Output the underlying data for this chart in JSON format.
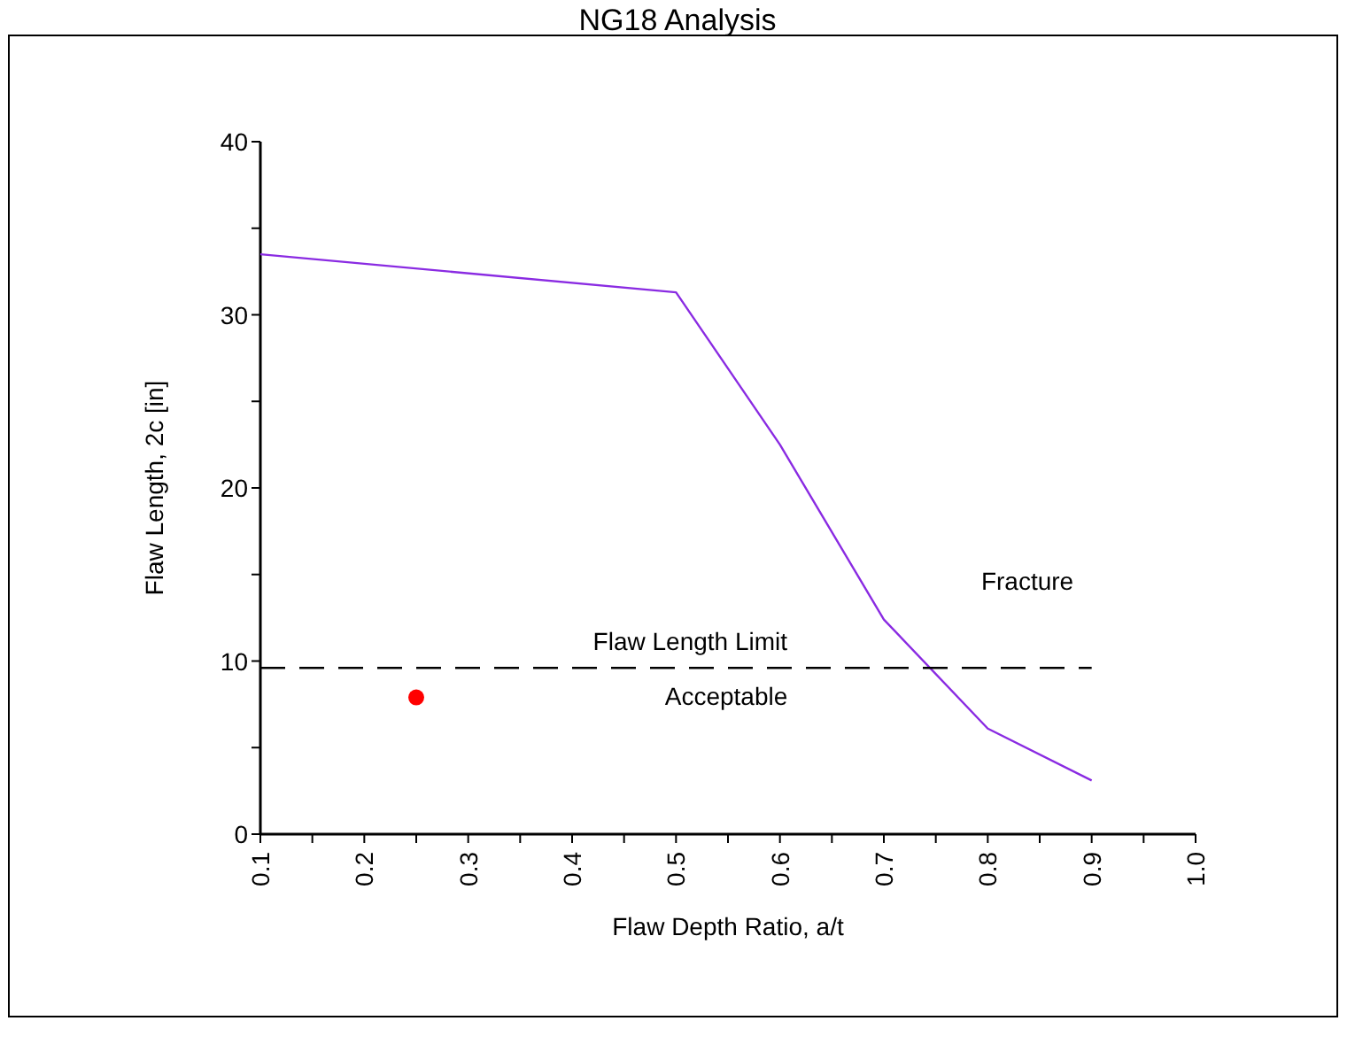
{
  "chart_data": {
    "type": "line",
    "title": "NG18 Analysis",
    "xlabel": "Flaw Depth Ratio, a/t",
    "ylabel": "Flaw Length, 2c [in]",
    "xlim": [
      0.1,
      1.0
    ],
    "ylim": [
      0,
      40
    ],
    "xticks": [
      {
        "value": 0.1,
        "label": "0.1"
      },
      {
        "value": 0.15,
        "label": null
      },
      {
        "value": 0.2,
        "label": "0.2"
      },
      {
        "value": 0.25,
        "label": null
      },
      {
        "value": 0.3,
        "label": "0.3"
      },
      {
        "value": 0.35,
        "label": null
      },
      {
        "value": 0.4,
        "label": "0.4"
      },
      {
        "value": 0.45,
        "label": null
      },
      {
        "value": 0.5,
        "label": "0.5"
      },
      {
        "value": 0.55,
        "label": null
      },
      {
        "value": 0.6,
        "label": "0.6"
      },
      {
        "value": 0.65,
        "label": null
      },
      {
        "value": 0.7,
        "label": "0.7"
      },
      {
        "value": 0.75,
        "label": null
      },
      {
        "value": 0.8,
        "label": "0.8"
      },
      {
        "value": 0.85,
        "label": null
      },
      {
        "value": 0.9,
        "label": "0.9"
      },
      {
        "value": 0.95,
        "label": null
      },
      {
        "value": 1.0,
        "label": "1.0"
      }
    ],
    "yticks": [
      0,
      {
        "value": 5,
        "label": null
      },
      10,
      {
        "value": 15,
        "label": null
      },
      20,
      {
        "value": 25,
        "label": null
      },
      30,
      {
        "value": 35,
        "label": null
      },
      40
    ],
    "grid": false,
    "series": [
      {
        "color": "#8a2be2",
        "x": [
          0.1,
          0.5,
          0.6,
          0.7,
          0.8,
          0.9
        ],
        "values": [
          33.5,
          31.3,
          22.5,
          12.4,
          6.1,
          3.1
        ],
        "line_style": "solid"
      },
      {
        "type": "line",
        "name": "Flaw Length Limit",
        "color": "#000000",
        "x": [
          0.1,
          0.9
        ],
        "values": [
          9.6,
          9.6
        ],
        "line_style": "dashed"
      },
      {
        "type": "scatter",
        "color": "#ff0000",
        "x": [
          0.25
        ],
        "values": [
          7.9
        ],
        "marker": "circle"
      }
    ],
    "annotations": [
      "Acceptable",
      "Fracture"
    ]
  }
}
